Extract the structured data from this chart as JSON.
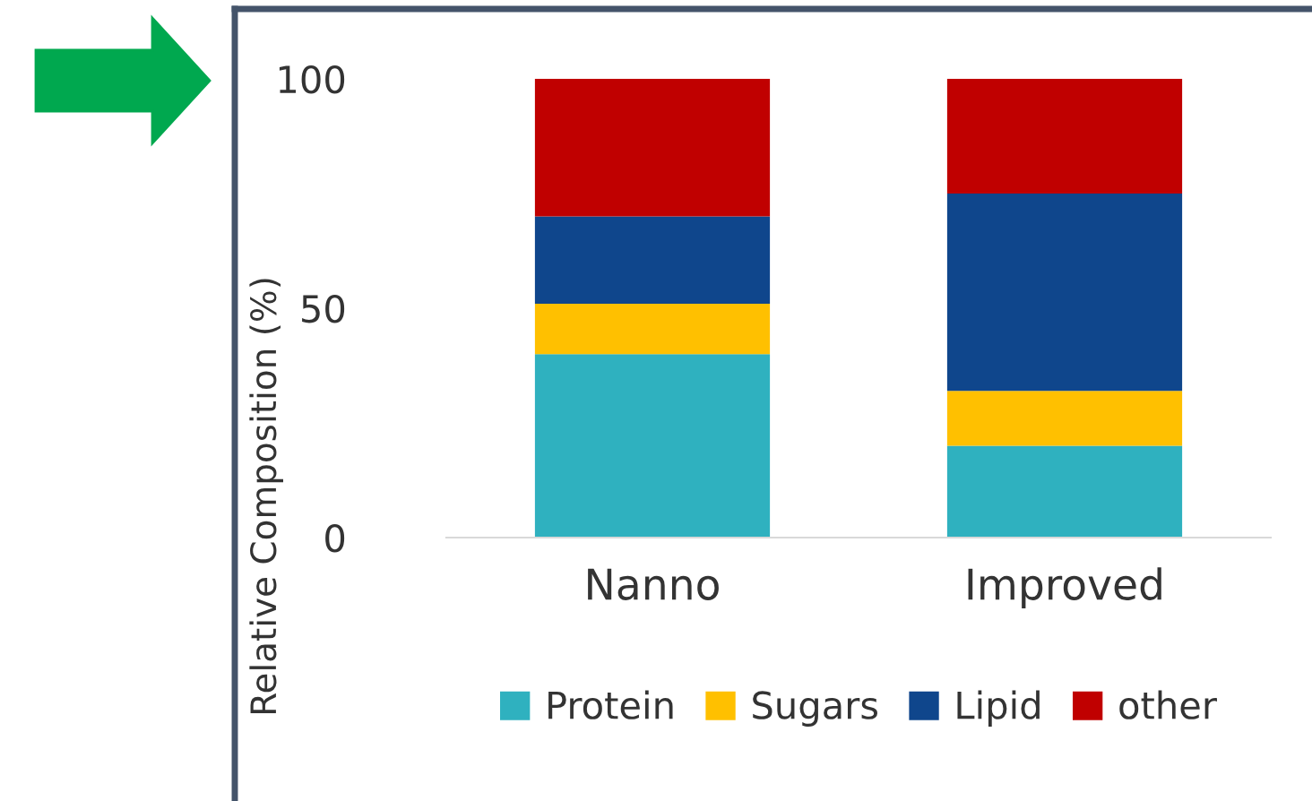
{
  "chart_data": {
    "type": "bar",
    "stacked": true,
    "ylabel": "Relative Composition (%)",
    "categories": [
      "Nanno",
      "Improved"
    ],
    "series": [
      {
        "name": "Protein",
        "color": "#2fb1bf",
        "values": [
          40,
          20
        ]
      },
      {
        "name": "Sugars",
        "color": "#ffc000",
        "values": [
          11,
          12
        ]
      },
      {
        "name": "Lipid",
        "color": "#0f468c",
        "values": [
          19,
          43
        ]
      },
      {
        "name": "other",
        "color": "#c00000",
        "values": [
          30,
          25
        ]
      }
    ],
    "ylim": [
      0,
      100
    ],
    "yticks": [
      0,
      50,
      100
    ],
    "grid": false,
    "legend": "bottom"
  }
}
